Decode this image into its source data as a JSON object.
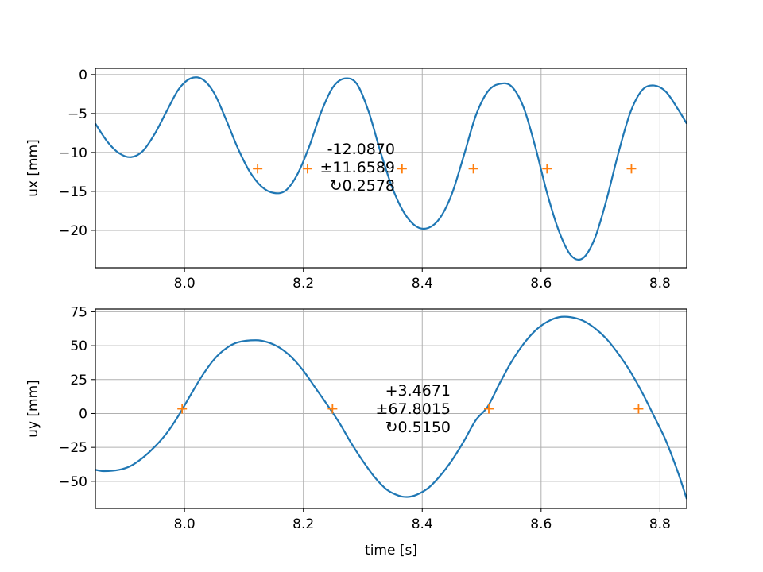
{
  "chart_data": [
    {
      "type": "line",
      "ylabel": "ux [mm]",
      "xlabel": "",
      "xlim": [
        7.85,
        8.845
      ],
      "ylim": [
        -24.8,
        0.8
      ],
      "x_ticks": [
        8.0,
        8.2,
        8.4,
        8.6,
        8.8
      ],
      "x_tick_labels": [
        "8.0",
        "8.2",
        "8.4",
        "8.6",
        "8.8"
      ],
      "y_ticks": [
        0,
        -5,
        -10,
        -15,
        -20
      ],
      "y_tick_labels": [
        "0",
        "−5",
        "−10",
        "−15",
        "−20"
      ],
      "grid": true,
      "series": [
        {
          "color": "#1f77b4",
          "x": [
            7.85,
            7.87,
            7.89,
            7.91,
            7.93,
            7.95,
            7.97,
            7.99,
            8.01,
            8.03,
            8.05,
            8.07,
            8.09,
            8.11,
            8.13,
            8.15,
            8.17,
            8.19,
            8.21,
            8.23,
            8.25,
            8.27,
            8.29,
            8.31,
            8.33,
            8.35,
            8.37,
            8.39,
            8.41,
            8.43,
            8.45,
            8.47,
            8.49,
            8.51,
            8.53,
            8.55,
            8.57,
            8.59,
            8.61,
            8.63,
            8.65,
            8.67,
            8.69,
            8.71,
            8.73,
            8.75,
            8.77,
            8.79,
            8.81,
            8.83,
            8.845
          ],
          "values": [
            -6.3,
            -8.6,
            -10.1,
            -10.6,
            -9.8,
            -7.6,
            -4.7,
            -1.9,
            -0.5,
            -0.6,
            -2.4,
            -5.8,
            -9.5,
            -12.5,
            -14.4,
            -15.2,
            -14.9,
            -12.8,
            -9.2,
            -4.8,
            -1.6,
            -0.5,
            -1.2,
            -4.8,
            -10.0,
            -14.6,
            -17.8,
            -19.5,
            -19.7,
            -18.4,
            -15.3,
            -10.4,
            -5.3,
            -2.2,
            -1.2,
            -1.5,
            -4.1,
            -9.2,
            -15.2,
            -20.1,
            -23.2,
            -23.6,
            -21.1,
            -16.1,
            -10.1,
            -4.9,
            -2.0,
            -1.4,
            -2.2,
            -4.4,
            -6.3
          ]
        }
      ],
      "markers": {
        "color": "#ff7f0e",
        "symbol": "+",
        "y": -12.087,
        "x": [
          8.123,
          8.207,
          8.366,
          8.486,
          8.61,
          8.752
        ]
      },
      "annotation": [
        "-12.0870",
        "±11.6589",
        "↻0.2578"
      ]
    },
    {
      "type": "line",
      "ylabel": "uy [mm]",
      "xlabel": "time [s]",
      "xlim": [
        7.85,
        8.845
      ],
      "ylim": [
        -70,
        77
      ],
      "x_ticks": [
        8.0,
        8.2,
        8.4,
        8.6,
        8.8
      ],
      "x_tick_labels": [
        "8.0",
        "8.2",
        "8.4",
        "8.6",
        "8.8"
      ],
      "y_ticks": [
        75,
        50,
        25,
        0,
        -25,
        -50
      ],
      "y_tick_labels": [
        "75",
        "50",
        "25",
        "0",
        "−25",
        "−50"
      ],
      "grid": true,
      "series": [
        {
          "color": "#1f77b4",
          "x": [
            7.85,
            7.865,
            7.89,
            7.91,
            7.93,
            7.95,
            7.97,
            7.99,
            8.01,
            8.03,
            8.05,
            8.07,
            8.09,
            8.12,
            8.14,
            8.16,
            8.18,
            8.2,
            8.22,
            8.24,
            8.26,
            8.28,
            8.3,
            8.32,
            8.34,
            8.36,
            8.375,
            8.39,
            8.41,
            8.43,
            8.45,
            8.47,
            8.49,
            8.51,
            8.53,
            8.55,
            8.57,
            8.59,
            8.61,
            8.63,
            8.65,
            8.67,
            8.69,
            8.71,
            8.73,
            8.75,
            8.77,
            8.79,
            8.81,
            8.83,
            8.845
          ],
          "values": [
            -41.5,
            -42.5,
            -41.5,
            -38.5,
            -32.5,
            -24.5,
            -14.5,
            -1.5,
            13.5,
            28,
            40,
            48,
            52.5,
            54,
            52.5,
            48.5,
            41.5,
            31.5,
            19,
            6.5,
            -6.5,
            -21.5,
            -35,
            -47,
            -56,
            -60.5,
            -61.5,
            -60,
            -55,
            -46,
            -34.5,
            -20.5,
            -5,
            5,
            22,
            38,
            51,
            61,
            67.5,
            71,
            71,
            68.5,
            63,
            55,
            44,
            31,
            15.5,
            -2,
            -20,
            -43,
            -63
          ]
        }
      ],
      "markers": {
        "color": "#ff7f0e",
        "symbol": "+",
        "y": 3.4671,
        "x": [
          7.996,
          8.249,
          8.512,
          8.764
        ]
      },
      "annotation": [
        "+3.4671",
        "±67.8015",
        "↻0.5150"
      ]
    }
  ]
}
